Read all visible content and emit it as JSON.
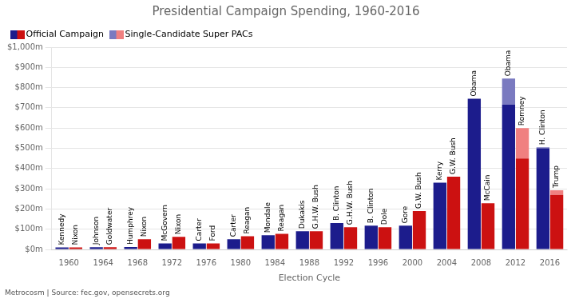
{
  "chart_data": {
    "type": "bar",
    "title": "Presidential Campaign Spending, 1960-2016",
    "xlabel": "Election Cycle",
    "source": "Metrocosm | Source: fec.gov, opensecrets.org",
    "categories": [
      "1960",
      "1964",
      "1968",
      "1972",
      "1976",
      "1980",
      "1984",
      "1988",
      "1992",
      "1996",
      "2000",
      "2004",
      "2008",
      "2012",
      "2016"
    ],
    "stacked": true,
    "stacks": [
      {
        "labels": [
          "Kennedy",
          "Johnson",
          "Humphrey",
          "McGovern",
          "Carter",
          "Carter",
          "Mondale",
          "Dukakis",
          "B. Clinton",
          "B. Clinton",
          "Gore",
          "Kerry",
          "Obama",
          "Obama",
          "H. Clinton"
        ],
        "series": [
          {
            "name": "Official Campaign",
            "color": "#1c1c8c",
            "values": [
              10,
              11,
              12,
              30,
              30,
              50,
              70,
              90,
              130,
              118,
              118,
              330,
              745,
              715,
              500
            ]
          },
          {
            "name": "Single-Candidate Super PACs",
            "color": "#7a7ac0",
            "values": [
              0,
              0,
              0,
              0,
              0,
              0,
              0,
              0,
              0,
              0,
              0,
              0,
              0,
              130,
              5
            ]
          }
        ]
      },
      {
        "labels": [
          "Nixon",
          "Goldwater",
          "Nixon",
          "Nixon",
          "Ford",
          "Reagan",
          "Reagan",
          "G.H.W. Bush",
          "G.H.W. Bush",
          "Dole",
          "G.W. Bush",
          "G.W. Bush",
          "McCain",
          "Romney",
          "Trump"
        ],
        "series": [
          {
            "name": "Official Campaign",
            "color": "#cc1111",
            "values": [
              10,
              11,
              50,
              62,
              30,
              65,
              77,
              90,
              110,
              110,
              190,
              360,
              228,
              450,
              270
            ]
          },
          {
            "name": "Single-Candidate Super PACs",
            "color": "#f08080",
            "values": [
              0,
              0,
              0,
              0,
              0,
              0,
              0,
              0,
              0,
              0,
              0,
              0,
              0,
              150,
              22
            ]
          }
        ]
      }
    ],
    "ylim": [
      0,
      1000
    ],
    "yticks": [
      {
        "value": 0,
        "label": "$0m"
      },
      {
        "value": 100,
        "label": "$100m"
      },
      {
        "value": 200,
        "label": "$200m"
      },
      {
        "value": 300,
        "label": "$300m"
      },
      {
        "value": 400,
        "label": "$400m"
      },
      {
        "value": 500,
        "label": "$500m"
      },
      {
        "value": 600,
        "label": "$600m"
      },
      {
        "value": 700,
        "label": "$700m"
      },
      {
        "value": 800,
        "label": "$800m"
      },
      {
        "value": 900,
        "label": "$900m"
      },
      {
        "value": 1000,
        "label": "$1,000m"
      }
    ],
    "grid": true,
    "legend": "upper left"
  }
}
